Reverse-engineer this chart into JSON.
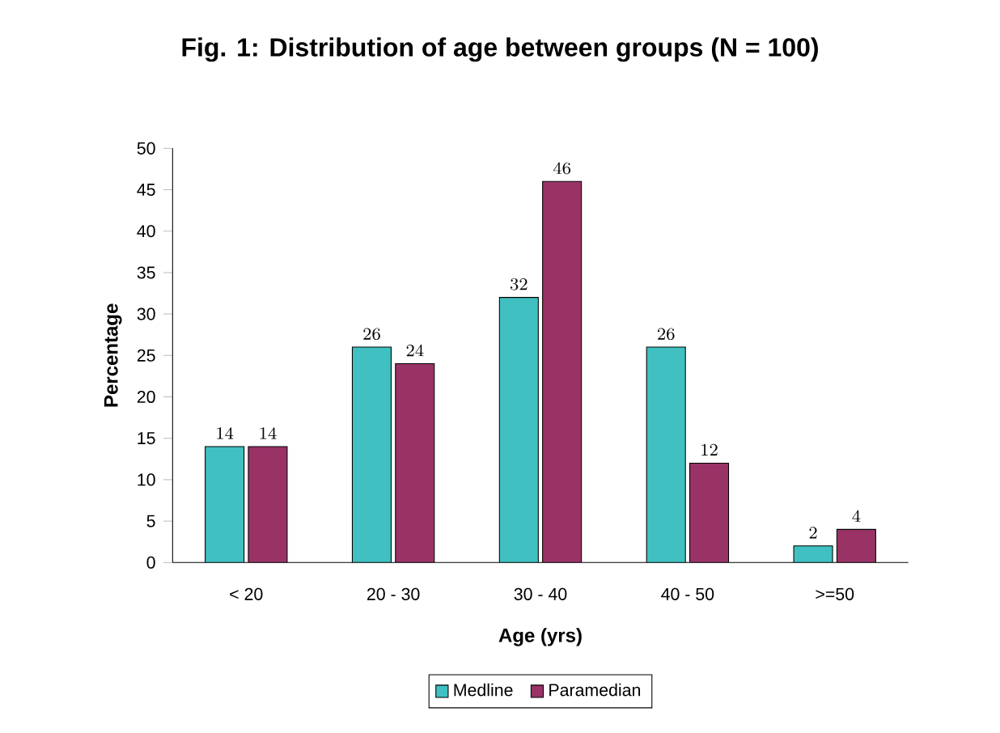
{
  "chart_data": {
    "type": "bar",
    "title": "Fig. 1: Distribution of age between groups (N = 100)",
    "xlabel": "Age (yrs)",
    "ylabel": "Percentage",
    "categories": [
      "< 20",
      "20 - 30",
      "30 - 40",
      "40 - 50",
      ">=50"
    ],
    "series": [
      {
        "name": "Medline",
        "color": "#40c0c0",
        "values": [
          14,
          26,
          32,
          26,
          2
        ]
      },
      {
        "name": "Paramedian",
        "color": "#993366",
        "values": [
          14,
          24,
          46,
          12,
          4
        ]
      }
    ],
    "ylim": [
      0,
      50
    ],
    "yticks": [
      0,
      5,
      10,
      15,
      20,
      25,
      30,
      35,
      40,
      45,
      50
    ],
    "data_labels": true,
    "legend": "bottom"
  }
}
